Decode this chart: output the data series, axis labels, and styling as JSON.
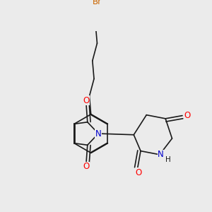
{
  "background_color": "#ebebeb",
  "bond_color": "#1a1a1a",
  "bond_width": 1.2,
  "atom_colors": {
    "O": "#ff0000",
    "N": "#0000cc",
    "Br": "#cc6600",
    "H": "#1a1a1a"
  },
  "font_size": 8.5,
  "figsize": [
    3.0,
    3.0
  ],
  "dpi": 100
}
